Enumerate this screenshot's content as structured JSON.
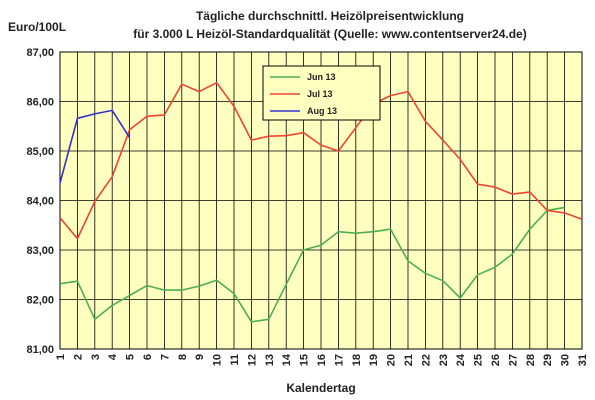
{
  "chart_data": {
    "type": "line",
    "title_line1": "Tägliche durchschnittl. Heizölpreisentwicklung",
    "title_line2": "für 3.000 L Heizöl-Standardqualität (Quelle: www.contentserver24.de)",
    "ylabel": "Euro/100L",
    "xlabel": "Kalendertag",
    "ylim": [
      81,
      87
    ],
    "yticks": [
      "81,00",
      "82,00",
      "83,00",
      "84,00",
      "85,00",
      "86,00",
      "87,00"
    ],
    "ytick_values": [
      81,
      82,
      83,
      84,
      85,
      86,
      87
    ],
    "x": [
      1,
      2,
      3,
      4,
      5,
      6,
      7,
      8,
      9,
      10,
      11,
      12,
      13,
      14,
      15,
      16,
      17,
      18,
      19,
      20,
      21,
      22,
      23,
      24,
      25,
      26,
      27,
      28,
      29,
      30,
      31
    ],
    "grid": true,
    "plot_background": "#ffffc0",
    "legend_position": "top-center",
    "series": [
      {
        "name": "Jun 13",
        "color": "#4caf50",
        "x": [
          1,
          2,
          3,
          4,
          5,
          6,
          7,
          8,
          9,
          10,
          11,
          12,
          13,
          14,
          15,
          16,
          17,
          18,
          19,
          20,
          21,
          22,
          23,
          24,
          25,
          26,
          27,
          28,
          29,
          30
        ],
        "values": [
          82.32,
          82.37,
          81.6,
          81.88,
          82.08,
          82.28,
          82.19,
          82.19,
          82.27,
          82.39,
          82.12,
          81.55,
          81.6,
          82.31,
          83.0,
          83.1,
          83.37,
          83.34,
          83.37,
          83.42,
          82.78,
          82.53,
          82.38,
          82.03,
          82.5,
          82.65,
          82.92,
          83.42,
          83.8,
          83.86
        ]
      },
      {
        "name": "Jul 13",
        "color": "#ee4433",
        "x": [
          1,
          2,
          3,
          4,
          5,
          6,
          7,
          8,
          9,
          10,
          11,
          12,
          13,
          14,
          15,
          16,
          17,
          18,
          19,
          20,
          21,
          22,
          23,
          24,
          25,
          26,
          27,
          28,
          29,
          30,
          31
        ],
        "values": [
          83.65,
          83.23,
          83.98,
          84.48,
          85.43,
          85.7,
          85.73,
          86.35,
          86.2,
          86.38,
          85.9,
          85.22,
          85.3,
          85.31,
          85.37,
          85.12,
          85.0,
          85.47,
          85.95,
          86.12,
          86.2,
          85.6,
          85.22,
          84.83,
          84.33,
          84.27,
          84.13,
          84.17,
          83.8,
          83.75,
          83.62
        ]
      },
      {
        "name": "Aug 13",
        "color": "#3333cc",
        "x": [
          1,
          2,
          3,
          4,
          5
        ],
        "values": [
          84.35,
          85.66,
          85.75,
          85.82,
          85.27
        ]
      }
    ]
  }
}
